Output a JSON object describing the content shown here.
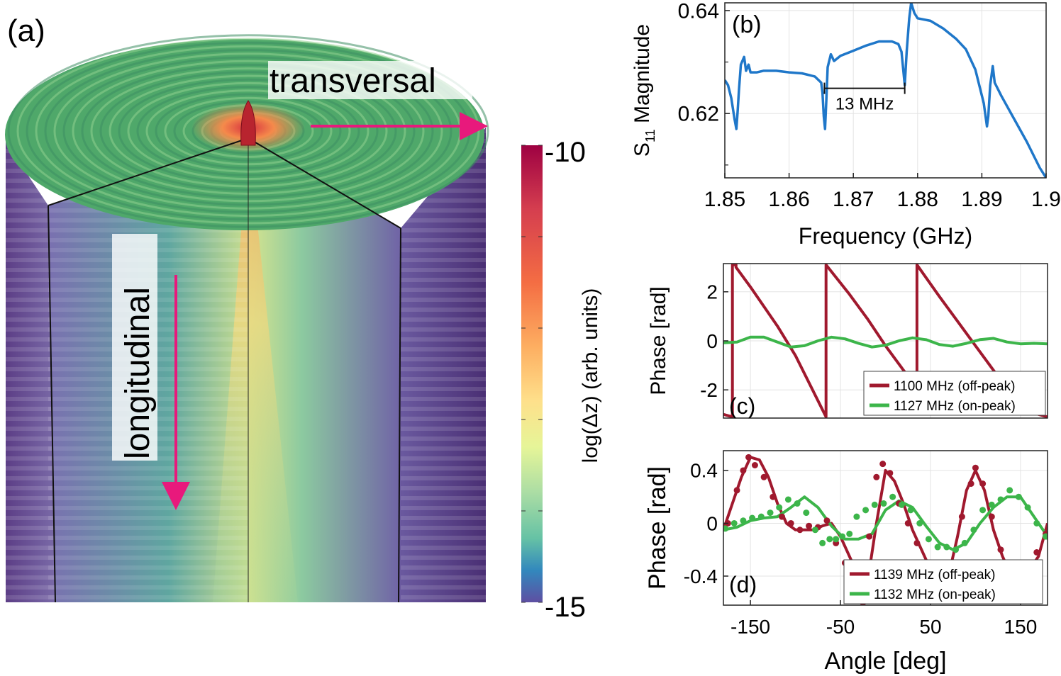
{
  "colors": {
    "blue": "#1f77c9",
    "red": "#a0192e",
    "green": "#3cb54a",
    "magenta": "#e8197c",
    "top_green": "#4fa86a",
    "side_purple": "#6a4f93"
  },
  "panel_a": {
    "label": "(a)",
    "transversal_label": "transversal",
    "longitudinal_label": "longitudinal",
    "colorbar": {
      "max_label": "-10",
      "min_label": "-15",
      "axis_label": "log(Δz) (arb. units)",
      "max": -10,
      "min": -15
    }
  },
  "chart_data": [
    {
      "id": "b",
      "type": "line",
      "panel_label": "(b)",
      "xlabel": "Frequency (GHz)",
      "ylabel_main": "S",
      "ylabel_sub": "11",
      "ylabel_rest": " Magnitude",
      "xlim": [
        1.85,
        1.9
      ],
      "ylim": [
        0.6075,
        0.6415
      ],
      "xticks": [
        1.85,
        1.86,
        1.87,
        1.88,
        1.89,
        1.9
      ],
      "xtick_labels": [
        "1.85",
        "1.86",
        "1.87",
        "1.88",
        "1.89",
        "1.9"
      ],
      "yticks": [
        0.62,
        0.64
      ],
      "ytick_labels": [
        "0.62",
        "0.64"
      ],
      "annotation": {
        "text": "13 MHz",
        "x_start": 1.8655,
        "x_end": 1.878,
        "y": 0.6249
      },
      "series": [
        {
          "color": "blue",
          "x": [
            1.85,
            1.8505,
            1.851,
            1.8515,
            1.8518,
            1.852,
            1.8522,
            1.8525,
            1.853,
            1.8533,
            1.8537,
            1.854,
            1.855,
            1.856,
            1.858,
            1.86,
            1.862,
            1.864,
            1.865,
            1.8652,
            1.8654,
            1.8656,
            1.8658,
            1.866,
            1.8665,
            1.867,
            1.868,
            1.87,
            1.872,
            1.874,
            1.876,
            1.877,
            1.8775,
            1.878,
            1.8783,
            1.8787,
            1.879,
            1.8795,
            1.88,
            1.882,
            1.884,
            1.886,
            1.8875,
            1.889,
            1.8903,
            1.8908,
            1.891,
            1.8913,
            1.8917,
            1.892,
            1.893,
            1.895,
            1.897,
            1.899,
            1.9
          ],
          "y": [
            0.6265,
            0.6255,
            0.623,
            0.619,
            0.617,
            0.6205,
            0.6245,
            0.6295,
            0.631,
            0.6283,
            0.6295,
            0.628,
            0.628,
            0.6283,
            0.6283,
            0.628,
            0.6278,
            0.6272,
            0.626,
            0.624,
            0.6195,
            0.617,
            0.6225,
            0.629,
            0.6315,
            0.6302,
            0.6312,
            0.6322,
            0.6332,
            0.634,
            0.634,
            0.6335,
            0.632,
            0.6255,
            0.632,
            0.6385,
            0.6415,
            0.6395,
            0.6385,
            0.638,
            0.6365,
            0.6345,
            0.6325,
            0.6285,
            0.622,
            0.6175,
            0.6195,
            0.6255,
            0.6292,
            0.626,
            0.6235,
            0.619,
            0.6145,
            0.6095,
            0.6075
          ]
        }
      ]
    },
    {
      "id": "c",
      "type": "line",
      "panel_label": "(c)",
      "ylabel": "Phase [rad]",
      "xlim": [
        -180,
        180
      ],
      "ylim": [
        -3.15,
        3.15
      ],
      "yticks": [
        -2,
        0,
        2
      ],
      "ytick_labels": [
        "-2",
        "0",
        "2"
      ],
      "series": [
        {
          "name": "1100 MHz (off-peak)",
          "color": "red",
          "x": [
            -180,
            -170,
            -170,
            -166,
            -166,
            -150,
            -120,
            -100,
            -66,
            -66,
            -40,
            -20,
            0,
            20,
            35,
            35,
            60,
            80,
            100,
            120,
            140,
            150,
            160,
            180
          ],
          "y": [
            -3.0,
            -3.1,
            3.1,
            3.1,
            3.0,
            2.2,
            0.6,
            -0.6,
            -3.1,
            3.1,
            1.9,
            0.9,
            -0.2,
            -1.2,
            -1.9,
            3.1,
            1.8,
            0.8,
            -0.2,
            -1.2,
            -2.2,
            -2.6,
            -2.9,
            -3.1
          ]
        },
        {
          "name": "1127 MHz (on-peak)",
          "color": "green",
          "x": [
            -180,
            -165,
            -150,
            -135,
            -120,
            -105,
            -90,
            -75,
            -60,
            -45,
            -30,
            -15,
            0,
            15,
            30,
            45,
            60,
            75,
            90,
            105,
            120,
            135,
            150,
            165,
            180
          ],
          "y": [
            -0.08,
            -0.05,
            0.15,
            0.15,
            -0.05,
            -0.25,
            -0.2,
            0.0,
            0.15,
            0.08,
            -0.1,
            -0.25,
            -0.18,
            0.0,
            0.12,
            0.05,
            -0.15,
            -0.22,
            -0.1,
            0.05,
            0.1,
            -0.05,
            -0.12,
            -0.1,
            -0.12
          ]
        }
      ]
    },
    {
      "id": "d",
      "type": "line",
      "panel_label": "(d)",
      "xlabel": "Angle [deg]",
      "ylabel": "Phase [rad]",
      "xlim": [
        -180,
        180
      ],
      "ylim": [
        -0.62,
        0.55
      ],
      "xticks": [
        -150,
        -50,
        50,
        150
      ],
      "xtick_labels": [
        "-150",
        "-50",
        "50",
        "150"
      ],
      "yticks": [
        -0.4,
        0,
        0.4
      ],
      "ytick_labels": [
        "-0.4",
        "0",
        "0.4"
      ],
      "series": [
        {
          "name": "1139 MHz (off-peak)",
          "color": "red",
          "x": [
            -180,
            -170,
            -160,
            -150,
            -140,
            -130,
            -120,
            -110,
            -100,
            -90,
            -80,
            -70,
            -60,
            -50,
            -40,
            -30,
            -20,
            -10,
            0,
            10,
            20,
            30,
            40,
            50,
            60,
            70,
            80,
            90,
            100,
            110,
            120,
            130,
            140,
            150,
            160,
            170,
            180
          ],
          "y": [
            -0.05,
            0.15,
            0.35,
            0.5,
            0.48,
            0.35,
            0.15,
            0.0,
            -0.05,
            -0.05,
            -0.05,
            -0.02,
            0.0,
            -0.1,
            -0.25,
            -0.4,
            -0.45,
            0.0,
            0.4,
            0.32,
            0.15,
            -0.05,
            -0.2,
            -0.35,
            -0.45,
            -0.4,
            -0.1,
            0.25,
            0.4,
            0.25,
            -0.05,
            -0.25,
            -0.4,
            -0.42,
            -0.35,
            -0.25,
            0.0
          ]
        },
        {
          "name": "1132 MHz (on-peak)",
          "color": "green",
          "x": [
            -180,
            -165,
            -150,
            -135,
            -120,
            -105,
            -90,
            -75,
            -60,
            -45,
            -30,
            -15,
            0,
            15,
            30,
            45,
            60,
            75,
            90,
            105,
            120,
            135,
            150,
            165,
            180
          ],
          "y": [
            -0.05,
            -0.03,
            0.02,
            0.04,
            0.05,
            0.12,
            0.2,
            0.12,
            -0.02,
            -0.12,
            -0.12,
            -0.08,
            0.1,
            0.17,
            0.12,
            -0.02,
            -0.15,
            -0.2,
            -0.15,
            0.0,
            0.12,
            0.2,
            0.2,
            0.05,
            -0.1
          ]
        }
      ],
      "markers": [
        {
          "color": "red",
          "x": [
            -175,
            -165,
            -158,
            -152,
            -145,
            -135,
            -125,
            -115,
            -105,
            -95,
            -85,
            -75,
            -65,
            -55,
            -45,
            -35,
            -25,
            -18,
            -10,
            -3,
            5,
            15,
            25,
            35,
            45,
            55,
            65,
            75,
            85,
            95,
            100,
            108,
            118,
            128,
            138,
            148,
            158,
            168,
            178
          ],
          "y": [
            0.0,
            0.25,
            0.4,
            0.5,
            0.44,
            0.35,
            0.2,
            0.05,
            0.0,
            -0.05,
            -0.02,
            -0.03,
            0.02,
            -0.15,
            -0.3,
            -0.42,
            -0.6,
            -0.1,
            0.35,
            0.45,
            0.38,
            0.15,
            0.0,
            -0.15,
            -0.3,
            -0.42,
            -0.42,
            -0.3,
            0.05,
            0.3,
            0.42,
            0.3,
            0.05,
            -0.2,
            -0.35,
            -0.38,
            -0.3,
            -0.22,
            -0.08
          ]
        },
        {
          "color": "green",
          "x": [
            -178,
            -168,
            -158,
            -148,
            -138,
            -128,
            -118,
            -108,
            -98,
            -88,
            -78,
            -70,
            -62,
            -55,
            -48,
            -40,
            -32,
            -22,
            -12,
            -2,
            8,
            18,
            28,
            38,
            48,
            58,
            68,
            78,
            88,
            98,
            108,
            118,
            128,
            138,
            148,
            158,
            168,
            178
          ],
          "y": [
            -0.04,
            0.0,
            0.02,
            0.04,
            0.05,
            0.08,
            0.12,
            0.18,
            0.15,
            0.08,
            -0.05,
            -0.15,
            -0.12,
            -0.12,
            -0.1,
            -0.08,
            0.05,
            0.1,
            0.14,
            0.15,
            0.2,
            0.14,
            0.1,
            0.0,
            -0.12,
            -0.18,
            -0.18,
            -0.2,
            -0.15,
            -0.05,
            0.1,
            0.14,
            0.18,
            0.25,
            0.2,
            0.12,
            0.0,
            -0.1
          ]
        }
      ]
    }
  ]
}
